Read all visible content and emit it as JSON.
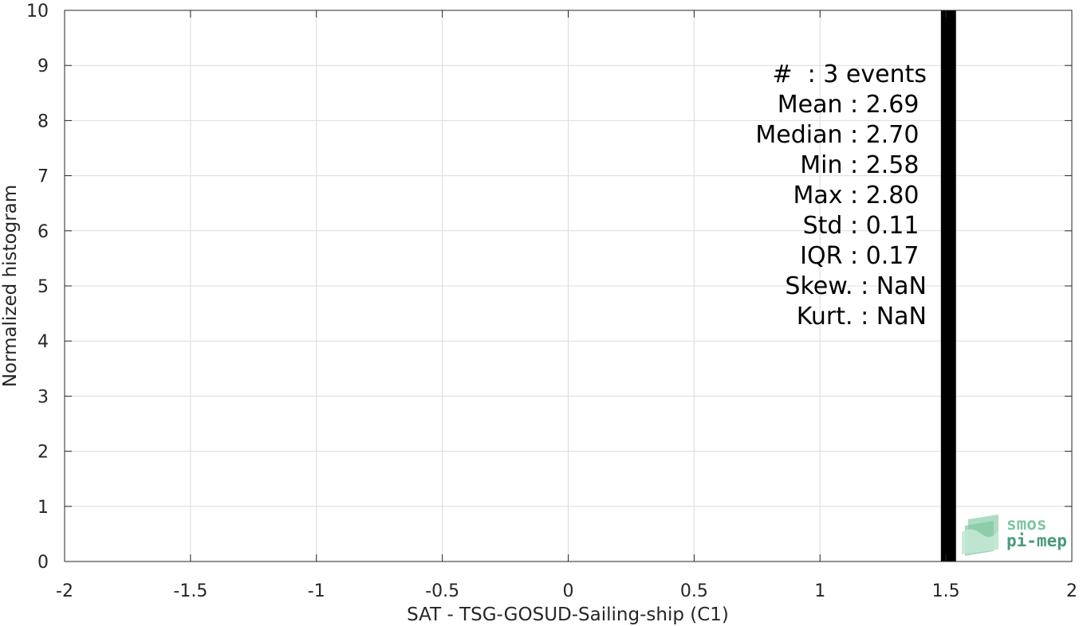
{
  "chart_data": {
    "type": "bar",
    "title": "",
    "xlabel": "SAT - TSG-GOSUD-Sailing-ship (C1)",
    "ylabel": "Normalized histogram",
    "xlim": [
      -2,
      2
    ],
    "ylim": [
      0,
      10
    ],
    "x_ticks": [
      -2,
      -1.5,
      -1,
      -0.5,
      0,
      0.5,
      1,
      1.5,
      2
    ],
    "x_tick_labels": [
      "-2",
      "-1.5",
      "-1",
      "-0.5",
      "0",
      "0.5",
      "1",
      "1.5",
      "2"
    ],
    "y_ticks": [
      0,
      1,
      2,
      3,
      4,
      5,
      6,
      7,
      8,
      9,
      10
    ],
    "y_tick_labels": [
      "0",
      "1",
      "2",
      "3",
      "4",
      "5",
      "6",
      "7",
      "8",
      "9",
      "10"
    ],
    "grid": true,
    "bars": [
      {
        "x_left": 1.48,
        "x_right": 1.54,
        "value": 10,
        "color": "#000000"
      }
    ],
    "stats": [
      "#  : 3 events",
      "Mean : 2.69 ",
      "Median : 2.70 ",
      "Min : 2.58 ",
      "Max : 2.80 ",
      "Std : 0.11 ",
      "IQR : 0.17 ",
      "Skew. : NaN",
      "Kurt. : NaN"
    ]
  },
  "logo": {
    "line1": "smos",
    "line2": "pi-mep",
    "color1": "#7fc6a0",
    "color2": "#4a9a78"
  },
  "colors": {
    "grid": "#dcdcdc",
    "axis": "#262626",
    "bar": "#000000"
  }
}
